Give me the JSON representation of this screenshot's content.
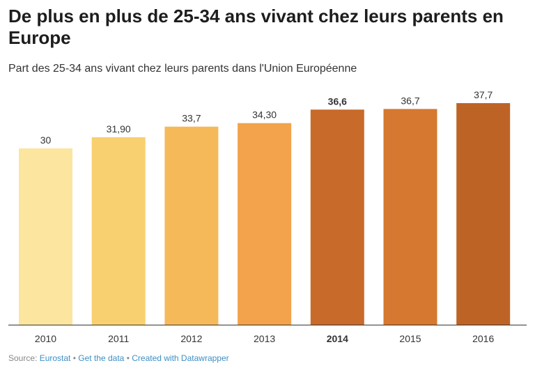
{
  "title": "De plus en plus de 25-34 ans vivant chez leurs parents en Europe",
  "subtitle": "Part des 25-34 ans vivant chez leurs parents dans l'Union Européenne",
  "chart_data": {
    "type": "bar",
    "categories": [
      "2010",
      "2011",
      "2012",
      "2013",
      "2014",
      "2015",
      "2016"
    ],
    "values": [
      30,
      31.9,
      33.7,
      34.3,
      36.6,
      36.7,
      37.7
    ],
    "value_labels": [
      "30",
      "31,90",
      "33,7",
      "34,30",
      "36,6",
      "36,7",
      "37,7"
    ],
    "highlighted": "2014",
    "colors": [
      "#fbe59f",
      "#f8d06f",
      "#f6b95a",
      "#f2a34b",
      "#c86a29",
      "#d6782f",
      "#be6326"
    ],
    "ylim": [
      0,
      37.7
    ],
    "xlabel": "",
    "ylabel": ""
  },
  "footer": {
    "source_label": "Source:",
    "source_link": "Eurostat",
    "get_data": "Get the data",
    "created_with": "Created with Datawrapper",
    "separator": "•"
  }
}
